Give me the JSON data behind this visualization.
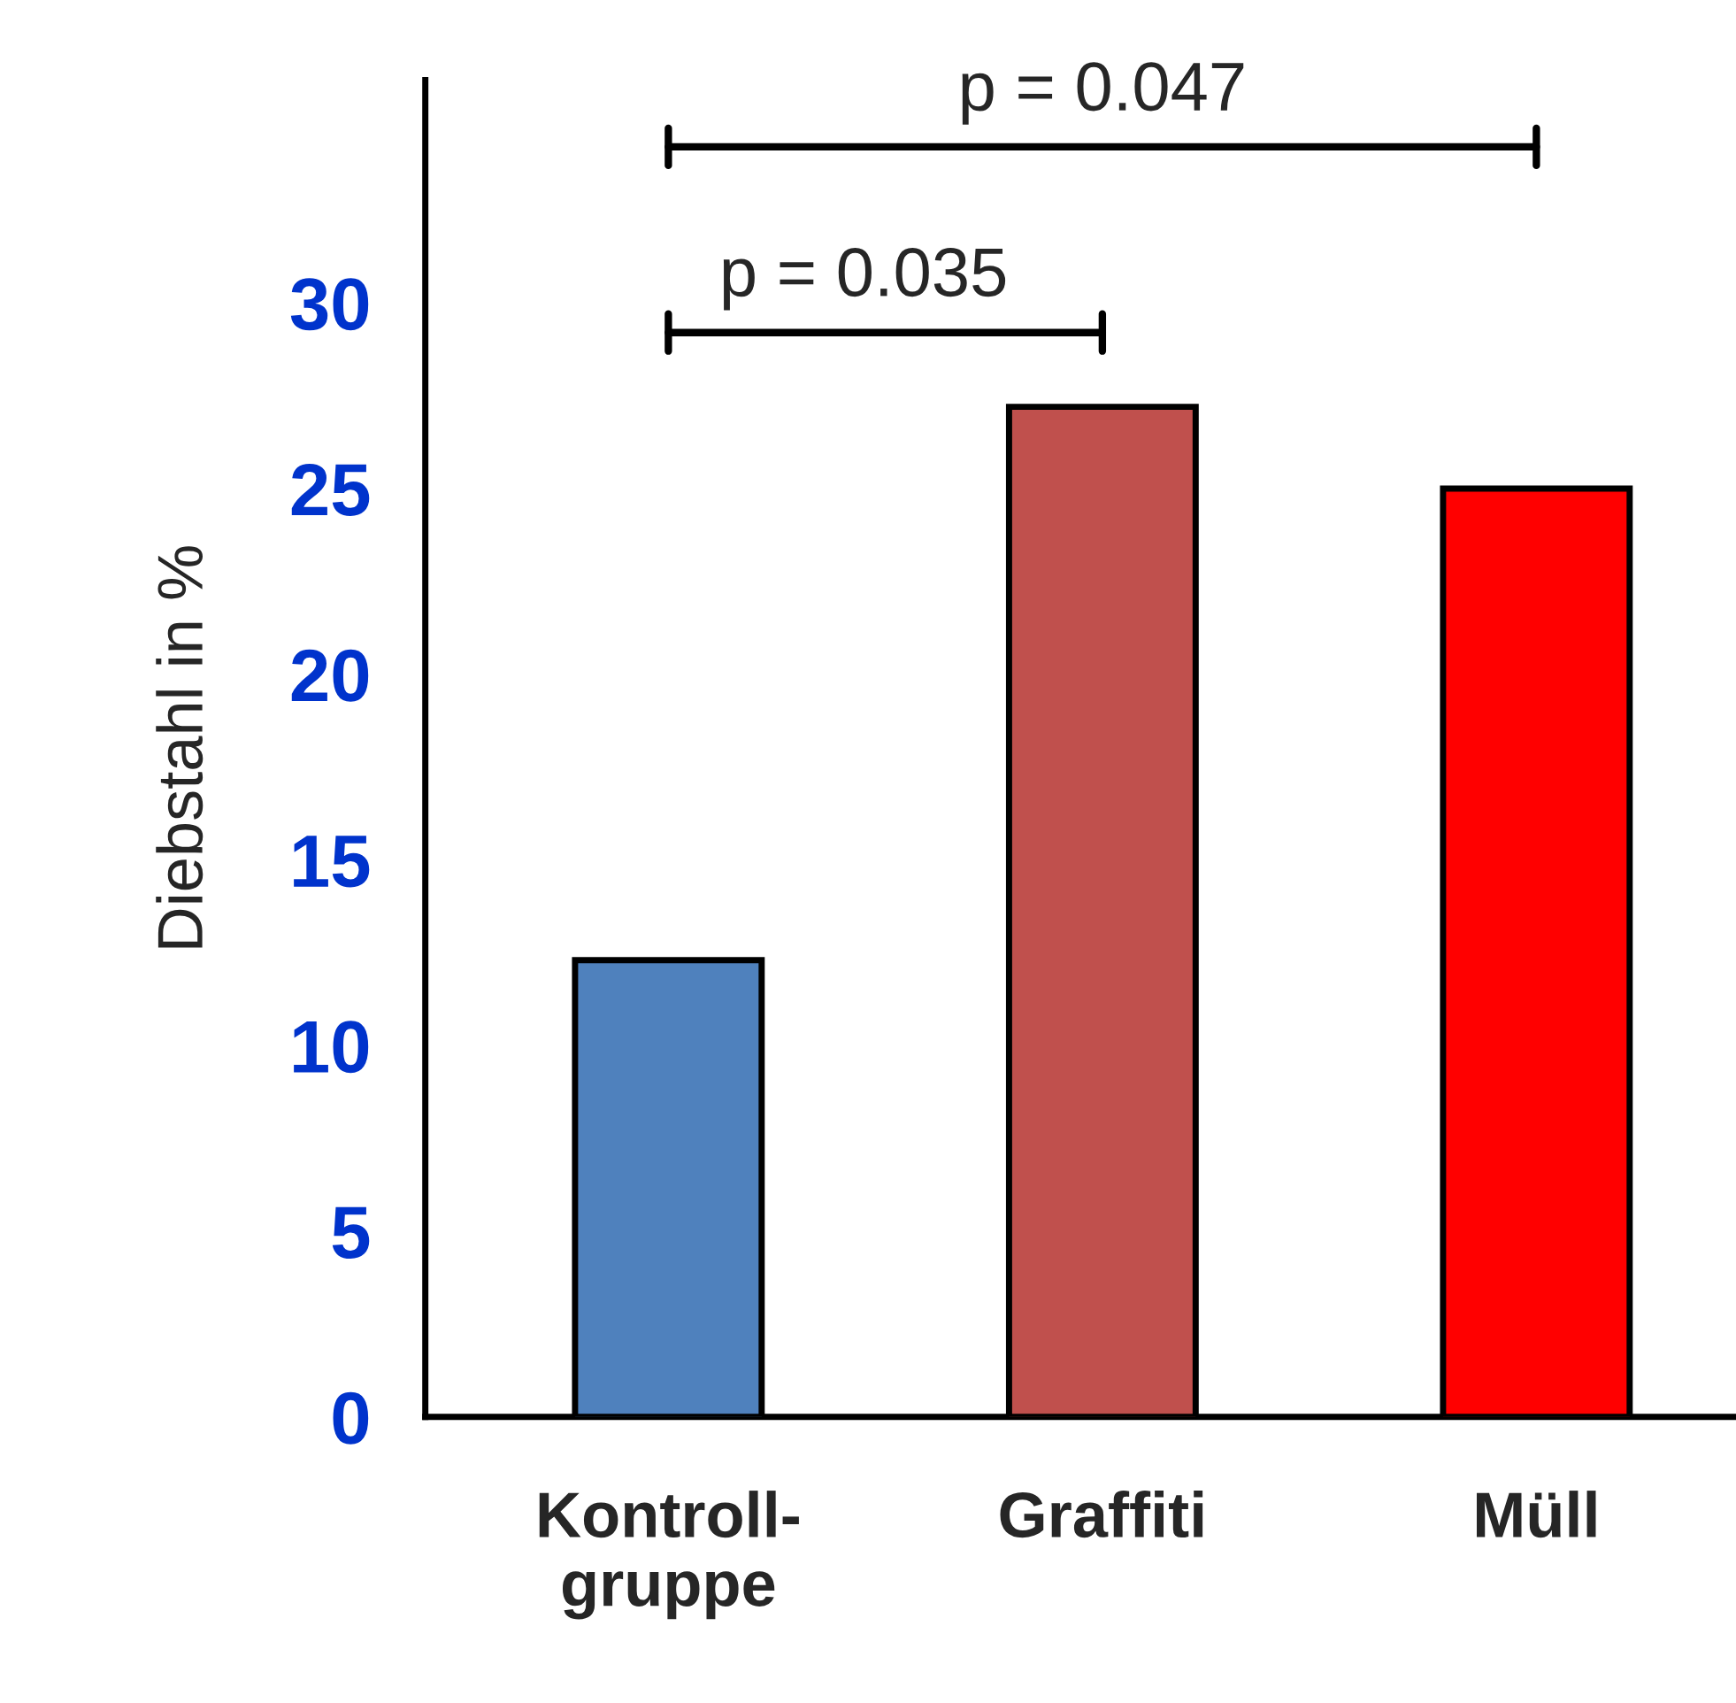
{
  "chart_data": {
    "type": "bar",
    "ylabel": "Diebstahl in %",
    "categories": [
      "Kontroll-\ngruppe",
      "Graffiti",
      "Müll"
    ],
    "values": [
      12.3,
      27.2,
      25.0
    ],
    "colors": [
      "#4f81bd",
      "#c0504d",
      "#ff0000"
    ],
    "ylim": [
      0,
      36
    ],
    "yticks": [
      0,
      5,
      10,
      15,
      20,
      25,
      30
    ],
    "grid": false,
    "legend": false,
    "annotations": [
      "p = 0.035",
      "p = 0.047"
    ]
  }
}
